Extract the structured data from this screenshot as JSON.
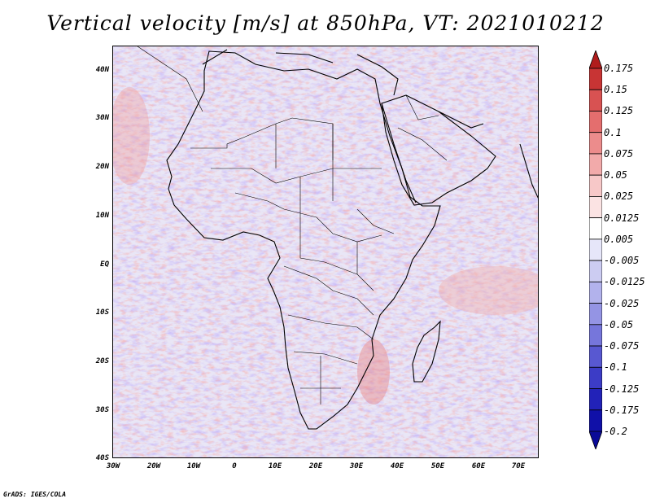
{
  "title": "Vertical velocity [m/s] at 850hPa, VT: 2021010212",
  "credit": "GrADS: IGES/COLA",
  "map": {
    "lon_range": [
      -30,
      75
    ],
    "lat_range": [
      -40,
      45
    ],
    "lat_labels": [
      "40N",
      "30N",
      "20N",
      "10N",
      "EQ",
      "10S",
      "20S",
      "30S",
      "40S"
    ],
    "lat_values": [
      40,
      30,
      20,
      10,
      0,
      -10,
      -20,
      -30,
      -40
    ],
    "lon_labels": [
      "30W",
      "20W",
      "10W",
      "0",
      "10E",
      "20E",
      "30E",
      "40E",
      "50E",
      "60E",
      "70E"
    ],
    "lon_values": [
      -30,
      -20,
      -10,
      0,
      10,
      20,
      30,
      40,
      50,
      60,
      70
    ]
  },
  "colorbar": {
    "levels": [
      "0.175",
      "0.15",
      "0.125",
      "0.1",
      "0.075",
      "0.05",
      "0.025",
      "0.0125",
      "0.005",
      "-0.005",
      "-0.0125",
      "-0.025",
      "-0.05",
      "-0.075",
      "-0.1",
      "-0.125",
      "-0.175",
      "-0.2"
    ],
    "colors": [
      "#b01c1c",
      "#c83434",
      "#d85252",
      "#e46e6e",
      "#ec8c8c",
      "#f2aaaa",
      "#f7c8c8",
      "#fbe3e3",
      "#ffffff",
      "#e6e6f9",
      "#ccccf2",
      "#b2b2ec",
      "#9494e4",
      "#7676db",
      "#5858d1",
      "#3c3cc6",
      "#2222b8",
      "#1010a8",
      "#0a0a98"
    ]
  }
}
